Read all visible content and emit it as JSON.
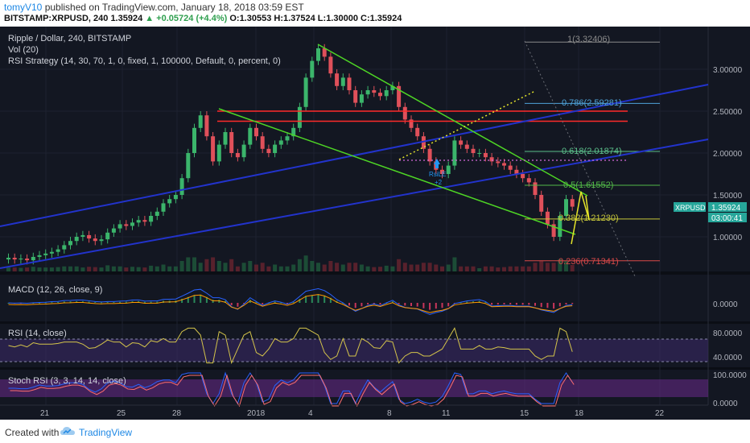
{
  "header": {
    "user": "tomyV10",
    "published_text": "published on TradingView.com, January 18, 2018 03:59 EST",
    "symbol": "BITSTAMP:XRPUSD, 240",
    "last": "1.35924",
    "change": "▲ +0.05724 (+4.4%)",
    "ohlc": "O:1.30553  H:1.37524  L:1.30000  C:1.35924"
  },
  "legend": {
    "title": "Ripple / Dollar, 240, BITSTAMP",
    "vol": "Vol (20)",
    "strategy": "RSI Strategy (14, 30, 70, 1, 0, fixed, 1, 100000, Default, 0, percent, 0)"
  },
  "panes": {
    "macd": "MACD (12, 26, close, 9)",
    "rsi": "RSI (14, close)",
    "stoch": "Stoch RSI (3, 3, 14, 14, close)"
  },
  "price_axis": [
    "3.00000",
    "2.50000",
    "2.00000",
    "1.50000",
    "1.00000"
  ],
  "macd_axis": [
    "0.0000"
  ],
  "rsi_axis": [
    "80.0000",
    "40.0000"
  ],
  "stoch_axis": [
    "100.0000",
    "0.0000"
  ],
  "time_axis": [
    "21",
    "25",
    "28",
    "2018",
    "4",
    "8",
    "11",
    "15",
    "18",
    "22"
  ],
  "fib_labels": [
    {
      "text": "1(3.32406)",
      "color": "#8a8a8a"
    },
    {
      "text": "0.786(2.59281)",
      "color": "#4fa3d9"
    },
    {
      "text": "0.618(2.01874)",
      "color": "#5bbf8a"
    },
    {
      "text": "0.5(1.61552)",
      "color": "#52b848"
    },
    {
      "text": "0.382(1.21230)",
      "color": "#c5c53a"
    },
    {
      "text": "0.236(0.71341)",
      "color": "#d94848"
    }
  ],
  "price_tags": {
    "symbol": "XRPUSD",
    "price": "1.35924",
    "countdown": "03:00:41"
  },
  "signal": {
    "line1": "RsiLE",
    "line2": "+2"
  },
  "footer": {
    "created": "Created with",
    "brand": "TradingView"
  },
  "chart_data": {
    "type": "candlestick",
    "title": "Ripple / Dollar, 240, BITSTAMP",
    "x_dates": [
      "Dec 21",
      "Dec 25",
      "Dec 28",
      "2018",
      "Jan 4",
      "Jan 8",
      "Jan 11",
      "Jan 15",
      "Jan 18",
      "Jan 22"
    ],
    "ylim": [
      0.55,
      3.45
    ],
    "close_series": [
      0.75,
      0.73,
      0.74,
      0.72,
      0.76,
      0.78,
      0.8,
      0.82,
      0.85,
      0.9,
      0.95,
      1.0,
      1.02,
      0.98,
      0.95,
      0.97,
      1.05,
      1.1,
      1.15,
      1.13,
      1.17,
      1.2,
      1.18,
      1.25,
      1.3,
      1.4,
      1.45,
      1.5,
      1.7,
      2.0,
      2.3,
      2.45,
      2.2,
      1.9,
      2.1,
      2.25,
      2.0,
      1.95,
      2.1,
      2.3,
      2.2,
      2.05,
      2.0,
      2.1,
      2.15,
      2.2,
      2.3,
      2.55,
      2.9,
      3.1,
      3.25,
      3.15,
      2.95,
      2.8,
      2.9,
      2.75,
      2.6,
      2.7,
      2.75,
      2.72,
      2.68,
      2.75,
      2.8,
      2.55,
      2.4,
      2.3,
      2.2,
      2.05,
      1.9,
      1.8,
      1.75,
      1.85,
      2.15,
      2.1,
      2.05,
      2.0,
      2.0,
      1.95,
      1.9,
      1.88,
      1.85,
      1.8,
      1.75,
      1.7,
      1.65,
      1.5,
      1.3,
      1.15,
      1.0,
      1.25,
      1.45,
      1.36
    ],
    "fib_levels": [
      {
        "ratio": "1",
        "value": 3.32406
      },
      {
        "ratio": "0.786",
        "value": 2.59281
      },
      {
        "ratio": "0.618",
        "value": 2.01874
      },
      {
        "ratio": "0.5",
        "value": 1.61552
      },
      {
        "ratio": "0.382",
        "value": 1.2123
      },
      {
        "ratio": "0.236",
        "value": 0.71341
      }
    ],
    "horizontal_lines": [
      {
        "value": 2.5,
        "color": "#ff2a2a"
      },
      {
        "value": 2.38,
        "color": "#ff2a2a"
      }
    ],
    "last_price": 1.35924,
    "rsi_levels": [
      70,
      30
    ]
  }
}
